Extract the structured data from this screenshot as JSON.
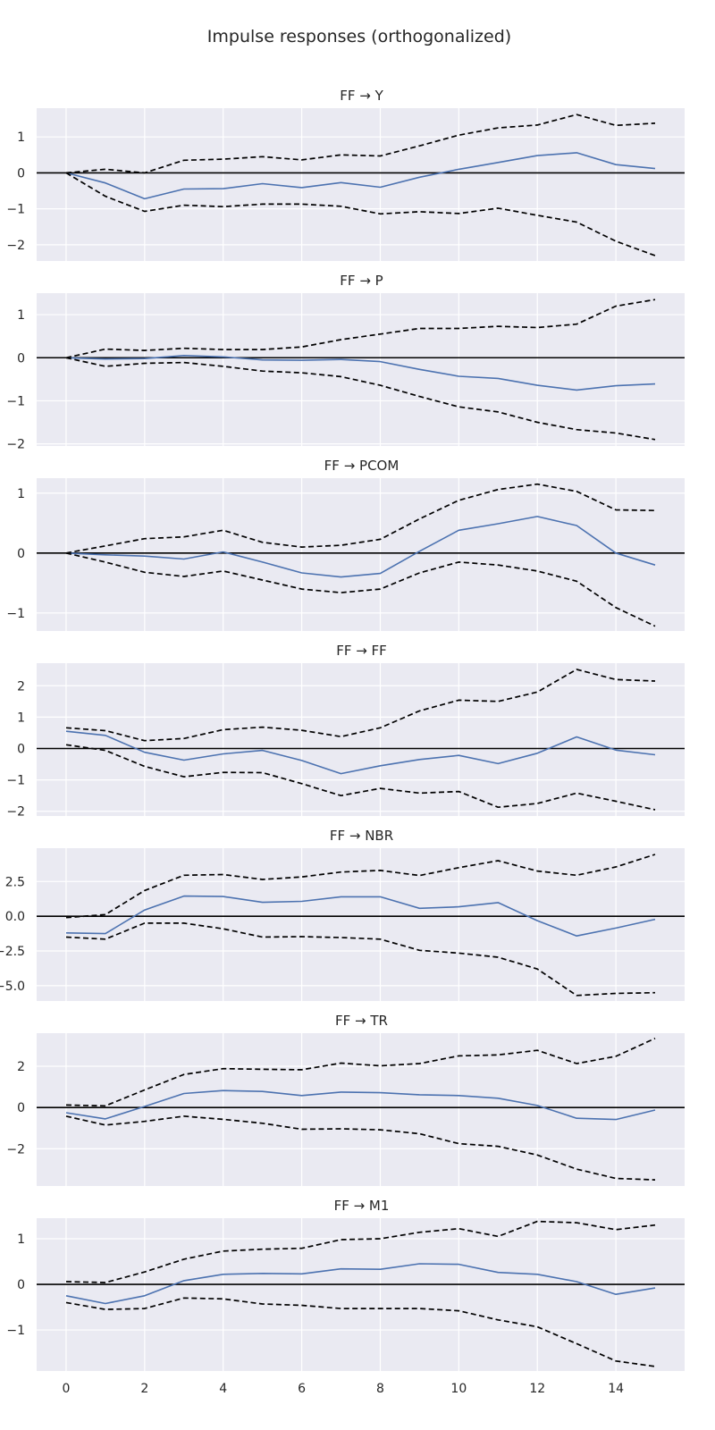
{
  "figure": {
    "title": "Impulse responses (orthogonalized)"
  },
  "style": {
    "panel_bg": "#eaeaf2",
    "grid_color": "#ffffff",
    "response_color": "#4c72b0",
    "band_color": "#000000",
    "zero_line_color": "#000000",
    "text_color": "#262626"
  },
  "chart_data": [
    {
      "type": "line",
      "title": "FF → Y",
      "x": [
        0,
        1,
        2,
        3,
        4,
        5,
        6,
        7,
        8,
        9,
        10,
        11,
        12,
        13,
        14,
        15
      ],
      "xlim": [
        -0.75,
        15.75
      ],
      "ylim": [
        -2.45,
        1.8
      ],
      "yticks": [
        -2,
        -1,
        0,
        1
      ],
      "ytick_labels": [
        "−2",
        "−1",
        "0",
        "1"
      ],
      "xticks": [],
      "xtick_labels": [],
      "series": [
        {
          "role": "response",
          "values": [
            0,
            -0.28,
            -0.72,
            -0.45,
            -0.44,
            -0.3,
            -0.41,
            -0.27,
            -0.4,
            -0.12,
            0.1,
            0.29,
            0.48,
            0.56,
            0.23,
            0.12
          ]
        },
        {
          "role": "upper",
          "values": [
            0,
            0.1,
            0,
            0.35,
            0.38,
            0.45,
            0.36,
            0.5,
            0.47,
            0.75,
            1.05,
            1.25,
            1.33,
            1.62,
            1.32,
            1.38
          ]
        },
        {
          "role": "lower",
          "values": [
            0,
            -0.65,
            -1.07,
            -0.9,
            -0.94,
            -0.87,
            -0.87,
            -0.93,
            -1.14,
            -1.08,
            -1.13,
            -0.98,
            -1.18,
            -1.37,
            -1.9,
            -2.3
          ]
        }
      ]
    },
    {
      "type": "line",
      "title": "FF → P",
      "x": [
        0,
        1,
        2,
        3,
        4,
        5,
        6,
        7,
        8,
        9,
        10,
        11,
        12,
        13,
        14,
        15
      ],
      "xlim": [
        -0.75,
        15.75
      ],
      "ylim": [
        -2.05,
        1.5
      ],
      "yticks": [
        -2,
        -1,
        0,
        1
      ],
      "ytick_labels": [
        "−2",
        "−1",
        "0",
        "1"
      ],
      "xticks": [],
      "xtick_labels": [],
      "series": [
        {
          "role": "response",
          "values": [
            0,
            -0.03,
            -0.02,
            0.05,
            0.02,
            -0.05,
            -0.06,
            -0.04,
            -0.09,
            -0.27,
            -0.43,
            -0.48,
            -0.64,
            -0.75,
            -0.65,
            -0.61
          ]
        },
        {
          "role": "upper",
          "values": [
            0,
            0.2,
            0.17,
            0.22,
            0.19,
            0.19,
            0.25,
            0.42,
            0.55,
            0.68,
            0.68,
            0.73,
            0.7,
            0.78,
            1.2,
            1.35
          ]
        },
        {
          "role": "lower",
          "values": [
            0,
            -0.2,
            -0.13,
            -0.11,
            -0.2,
            -0.31,
            -0.35,
            -0.44,
            -0.64,
            -0.9,
            -1.14,
            -1.26,
            -1.5,
            -1.67,
            -1.75,
            -1.9
          ]
        }
      ]
    },
    {
      "type": "line",
      "title": "FF → PCOM",
      "x": [
        0,
        1,
        2,
        3,
        4,
        5,
        6,
        7,
        8,
        9,
        10,
        11,
        12,
        13,
        14,
        15
      ],
      "xlim": [
        -0.75,
        15.75
      ],
      "ylim": [
        -1.3,
        1.25
      ],
      "yticks": [
        -1,
        0,
        1
      ],
      "ytick_labels": [
        "−1",
        "0",
        "1"
      ],
      "xticks": [],
      "xtick_labels": [],
      "series": [
        {
          "role": "response",
          "values": [
            0,
            -0.03,
            -0.05,
            -0.1,
            0.02,
            -0.15,
            -0.33,
            -0.4,
            -0.34,
            0.03,
            0.38,
            0.49,
            0.61,
            0.46,
            0,
            -0.2
          ]
        },
        {
          "role": "upper",
          "values": [
            0,
            0.12,
            0.24,
            0.27,
            0.38,
            0.18,
            0.1,
            0.13,
            0.23,
            0.57,
            0.88,
            1.06,
            1.15,
            1.03,
            0.72,
            0.71
          ]
        },
        {
          "role": "lower",
          "values": [
            0,
            -0.15,
            -0.32,
            -0.39,
            -0.3,
            -0.45,
            -0.6,
            -0.66,
            -0.6,
            -0.33,
            -0.15,
            -0.2,
            -0.3,
            -0.47,
            -0.91,
            -1.22
          ]
        }
      ]
    },
    {
      "type": "line",
      "title": "FF → FF",
      "x": [
        0,
        1,
        2,
        3,
        4,
        5,
        6,
        7,
        8,
        9,
        10,
        11,
        12,
        13,
        14,
        15
      ],
      "xlim": [
        -0.75,
        15.75
      ],
      "ylim": [
        -2.15,
        2.72
      ],
      "yticks": [
        -2,
        -1,
        0,
        1,
        2
      ],
      "ytick_labels": [
        "−2",
        "−1",
        "0",
        "1",
        "2"
      ],
      "xticks": [],
      "xtick_labels": [],
      "series": [
        {
          "role": "response",
          "values": [
            0.55,
            0.42,
            -0.12,
            -0.37,
            -0.17,
            -0.06,
            -0.38,
            -0.8,
            -0.55,
            -0.35,
            -0.22,
            -0.48,
            -0.15,
            0.37,
            -0.05,
            -0.2
          ]
        },
        {
          "role": "upper",
          "values": [
            0.66,
            0.57,
            0.25,
            0.32,
            0.6,
            0.68,
            0.58,
            0.38,
            0.66,
            1.2,
            1.54,
            1.5,
            1.8,
            2.52,
            2.2,
            2.15
          ]
        },
        {
          "role": "lower",
          "values": [
            0.12,
            -0.06,
            -0.57,
            -0.9,
            -0.76,
            -0.77,
            -1.12,
            -1.5,
            -1.27,
            -1.42,
            -1.37,
            -1.87,
            -1.75,
            -1.42,
            -1.68,
            -1.95
          ]
        }
      ]
    },
    {
      "type": "line",
      "title": "FF → NBR",
      "x": [
        0,
        1,
        2,
        3,
        4,
        5,
        6,
        7,
        8,
        9,
        10,
        11,
        12,
        13,
        14,
        15
      ],
      "xlim": [
        -0.75,
        15.75
      ],
      "ylim": [
        -6.1,
        4.9
      ],
      "yticks": [
        -5.0,
        -2.5,
        0.0,
        2.5
      ],
      "ytick_labels": [
        "−5.0",
        "−2.5",
        "0.0",
        "2.5"
      ],
      "xticks": [],
      "xtick_labels": [],
      "series": [
        {
          "role": "response",
          "values": [
            -1.2,
            -1.25,
            0.45,
            1.45,
            1.42,
            1.0,
            1.07,
            1.4,
            1.4,
            0.57,
            0.68,
            0.98,
            -0.32,
            -1.42,
            -0.85,
            -0.22
          ]
        },
        {
          "role": "upper",
          "values": [
            -0.1,
            0.12,
            1.85,
            2.95,
            3.0,
            2.65,
            2.83,
            3.18,
            3.3,
            2.93,
            3.5,
            4.0,
            3.25,
            2.95,
            3.55,
            4.45
          ]
        },
        {
          "role": "lower",
          "values": [
            -1.5,
            -1.65,
            -0.5,
            -0.5,
            -0.9,
            -1.5,
            -1.47,
            -1.53,
            -1.65,
            -2.45,
            -2.65,
            -2.95,
            -3.8,
            -5.7,
            -5.55,
            -5.5
          ]
        }
      ]
    },
    {
      "type": "line",
      "title": "FF → TR",
      "x": [
        0,
        1,
        2,
        3,
        4,
        5,
        6,
        7,
        8,
        9,
        10,
        11,
        12,
        13,
        14,
        15
      ],
      "xlim": [
        -0.75,
        15.75
      ],
      "ylim": [
        -3.8,
        3.6
      ],
      "yticks": [
        -2,
        0,
        2
      ],
      "ytick_labels": [
        "−2",
        "0",
        "2"
      ],
      "xticks": [],
      "xtick_labels": [],
      "series": [
        {
          "role": "response",
          "values": [
            -0.25,
            -0.55,
            0.05,
            0.68,
            0.82,
            0.78,
            0.58,
            0.75,
            0.72,
            0.62,
            0.58,
            0.45,
            0.1,
            -0.52,
            -0.58,
            -0.12
          ]
        },
        {
          "role": "upper",
          "values": [
            0.12,
            0.08,
            0.85,
            1.6,
            1.88,
            1.85,
            1.83,
            2.15,
            2.02,
            2.13,
            2.5,
            2.55,
            2.77,
            2.13,
            2.48,
            3.35
          ]
        },
        {
          "role": "lower",
          "values": [
            -0.42,
            -0.85,
            -0.67,
            -0.42,
            -0.57,
            -0.76,
            -1.05,
            -1.03,
            -1.08,
            -1.27,
            -1.75,
            -1.88,
            -2.3,
            -2.98,
            -3.43,
            -3.5
          ]
        }
      ]
    },
    {
      "type": "line",
      "title": "FF → M1",
      "x": [
        0,
        1,
        2,
        3,
        4,
        5,
        6,
        7,
        8,
        9,
        10,
        11,
        12,
        13,
        14,
        15
      ],
      "xlim": [
        -0.75,
        15.75
      ],
      "ylim": [
        -1.9,
        1.45
      ],
      "yticks": [
        -1,
        0,
        1
      ],
      "ytick_labels": [
        "−1",
        "0",
        "1"
      ],
      "xticks": [
        0,
        2,
        4,
        6,
        8,
        10,
        12,
        14
      ],
      "xtick_labels": [
        "0",
        "2",
        "4",
        "6",
        "8",
        "10",
        "12",
        "14"
      ],
      "series": [
        {
          "role": "response",
          "values": [
            -0.25,
            -0.42,
            -0.25,
            0.08,
            0.22,
            0.24,
            0.23,
            0.34,
            0.33,
            0.45,
            0.44,
            0.26,
            0.22,
            0.06,
            -0.22,
            -0.08
          ]
        },
        {
          "role": "upper",
          "values": [
            0.06,
            0.04,
            0.27,
            0.55,
            0.73,
            0.77,
            0.79,
            0.98,
            1.0,
            1.14,
            1.22,
            1.05,
            1.38,
            1.35,
            1.2,
            1.3
          ]
        },
        {
          "role": "lower",
          "values": [
            -0.4,
            -0.55,
            -0.53,
            -0.3,
            -0.32,
            -0.43,
            -0.46,
            -0.53,
            -0.53,
            -0.53,
            -0.58,
            -0.78,
            -0.93,
            -1.3,
            -1.68,
            -1.8
          ]
        }
      ]
    }
  ]
}
